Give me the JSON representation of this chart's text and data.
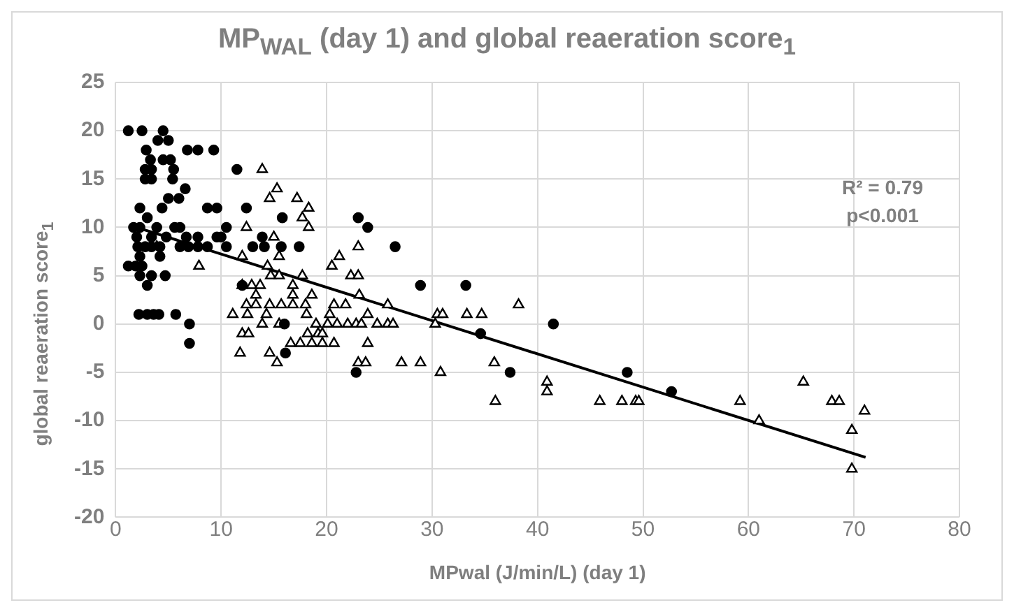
{
  "chart_data": {
    "type": "scatter",
    "title": "MP$_{WAL}$ (day 1) and global reaeration score$_{1}$",
    "xlabel": "MPwal (J/min/L) (day 1)",
    "ylabel": "global reaeration score$_{1}$",
    "xlim": [
      0,
      80
    ],
    "xticks": [
      0,
      10,
      20,
      30,
      40,
      50,
      60,
      70,
      80
    ],
    "ylim": [
      -20,
      25
    ],
    "yticks": [
      -20,
      -15,
      -10,
      -5,
      0,
      5,
      10,
      15,
      20,
      25
    ],
    "grid": true,
    "legend": false,
    "annotations": [
      "R² = 0.79",
      "p<0.001"
    ],
    "series": [
      {
        "color": "#000000",
        "marker": "circle",
        "x": [
          1.2,
          2.5,
          4.5,
          4,
          5,
          2.9,
          6.8,
          7.8,
          9.3,
          3.3,
          4.5,
          5.2,
          2.8,
          3.4,
          5.5,
          11.5,
          2.8,
          3.4,
          5.4,
          6.6,
          5,
          6,
          4.4,
          2.3,
          8.7,
          9.6,
          12.4,
          3,
          15.8,
          1.7,
          2.3,
          3.9,
          5.6,
          6.1,
          10.5,
          2,
          3.4,
          4.8,
          6.7,
          7.8,
          9.6,
          10,
          13.9,
          2.1,
          2.8,
          3.4,
          4.2,
          6.1,
          6.9,
          7.8,
          8.7,
          10.5,
          13,
          14.1,
          15.7,
          17.4,
          2.3,
          4.2,
          1.2,
          1.9,
          2.5,
          2.3,
          3.4,
          4.7,
          3,
          12,
          2.2,
          3,
          3.6,
          4.1,
          5.7,
          7,
          16,
          7,
          16.1,
          23,
          23.9,
          26.5,
          28.9,
          33.2,
          41.5,
          34.6,
          22.8,
          37.4,
          48.5,
          52.7
        ],
        "values": [
          20,
          20,
          20,
          19,
          19,
          18,
          18,
          18,
          18,
          17,
          17,
          17,
          16,
          16,
          16,
          16,
          15,
          15,
          15,
          14,
          13,
          13,
          12,
          12,
          12,
          12,
          12,
          11,
          11,
          10,
          10,
          10,
          10,
          10,
          10,
          9,
          9,
          9,
          9,
          9,
          9,
          9,
          9,
          8,
          8,
          8,
          8,
          8,
          8,
          8,
          8,
          8,
          8,
          8,
          8,
          8,
          7,
          7,
          6,
          6,
          6,
          5,
          5,
          5,
          4,
          4,
          1,
          1,
          1,
          1,
          1,
          0,
          0,
          -2,
          -3,
          11,
          10,
          8,
          4,
          4,
          0,
          -1,
          -5,
          -5,
          -5,
          -7
        ]
      },
      {
        "color": "#000000",
        "marker": "triangle",
        "x": [
          13.9,
          15.3,
          14.6,
          17.2,
          18.3,
          17.7,
          12.4,
          18.3,
          15,
          23,
          15.5,
          12,
          21.2,
          20.5,
          7.9,
          14.4,
          3.9,
          22.3,
          23,
          14.7,
          15.5,
          17.7,
          16.8,
          12,
          12.9,
          13.7,
          13.3,
          16.8,
          18.6,
          12.4,
          13.3,
          14.6,
          15.7,
          16.8,
          18,
          20.7,
          21.8,
          11.1,
          12.5,
          14.3,
          18.1,
          20.3,
          13.9,
          15.5,
          19,
          20.1,
          21,
          22,
          12,
          12.6,
          18.2,
          19.2,
          19.6,
          16.6,
          17.5,
          18.6,
          19.6,
          20.7,
          11.8,
          14.6,
          15.3,
          23.1,
          25.8,
          23.9,
          30.5,
          31,
          33.3,
          34.7,
          38.2,
          22.8,
          23.3,
          24.8,
          25.8,
          26.3,
          30.3,
          23.9,
          23,
          23.7,
          27.1,
          28.9,
          30.8,
          35.9,
          40.9,
          40.9,
          36,
          45.9,
          48,
          49.3,
          49.6,
          59.2,
          61,
          65.2,
          67.9,
          68.6,
          71,
          69.8,
          69.8
        ],
        "values": [
          16,
          14,
          13,
          13,
          12,
          11,
          10,
          10,
          9,
          8,
          7,
          7,
          7,
          6,
          6,
          6,
          8,
          5,
          5,
          5,
          5,
          5,
          4,
          4,
          4,
          4,
          3,
          3,
          3,
          2,
          2,
          2,
          2,
          2,
          2,
          2,
          2,
          1,
          1,
          1,
          1,
          1,
          0,
          0,
          0,
          0,
          0,
          0,
          -1,
          -1,
          -1,
          -1,
          -1,
          -2,
          -2,
          -2,
          -2,
          -2,
          -3,
          -3,
          -4,
          3,
          2,
          1,
          1,
          1,
          1,
          1,
          2,
          0,
          0,
          0,
          0,
          0,
          0,
          -2,
          -4,
          -4,
          -4,
          -4,
          -5,
          -4,
          -6,
          -7,
          -8,
          -8,
          -8,
          -8,
          -8,
          -8,
          -10,
          -6,
          -8,
          -8,
          -9,
          -11,
          -15
        ]
      },
      {
        "type": "line",
        "color": "#000000",
        "marker": "none",
        "line_style": "solid",
        "x": [
          1.4,
          71.1
        ],
        "values": [
          10.2,
          -13.8
        ]
      }
    ]
  }
}
